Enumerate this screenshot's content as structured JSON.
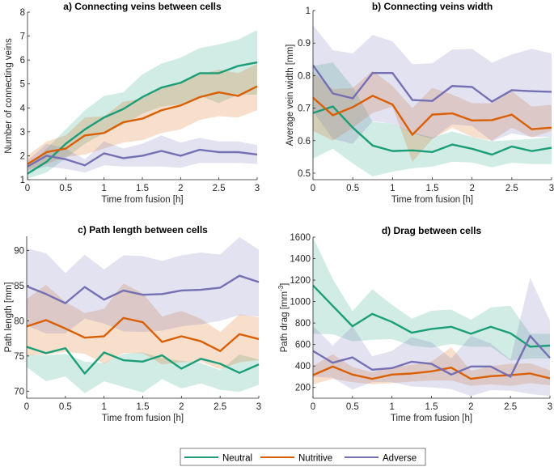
{
  "legend": {
    "position": "bottom-center",
    "entries": [
      {
        "name": "Neutral",
        "color": "#1b9e77"
      },
      {
        "name": "Nutritive",
        "color": "#d95f02"
      },
      {
        "name": "Adverse",
        "color": "#7570b3"
      }
    ]
  },
  "chart_data": [
    {
      "id": "a",
      "type": "line",
      "title": "a) Connecting veins between cells",
      "xlabel": "Time from fusion [h]",
      "ylabel": "Number of connecting veins",
      "xlim": [
        0,
        3
      ],
      "ylim": [
        1,
        8
      ],
      "xticks": [
        0,
        0.5,
        1,
        1.5,
        2,
        2.5,
        3
      ],
      "xtick_labels": [
        "0",
        "0.5",
        "1",
        "1.5",
        "2",
        "2.5",
        "3"
      ],
      "yticks": [
        1,
        2,
        3,
        4,
        5,
        6,
        7,
        8
      ],
      "ytick_labels": [
        "1",
        "2",
        "3",
        "4",
        "5",
        "6",
        "7",
        "8"
      ],
      "grid": false,
      "x": [
        0,
        0.25,
        0.5,
        0.75,
        1,
        1.25,
        1.5,
        1.75,
        2,
        2.25,
        2.5,
        2.75,
        3
      ],
      "series": [
        {
          "name": "Neutral",
          "values": [
            1.25,
            1.75,
            2.5,
            3.1,
            3.6,
            3.95,
            4.45,
            4.85,
            5.05,
            5.45,
            5.45,
            5.75,
            5.9
          ],
          "lower": [
            1.05,
            1.3,
            1.9,
            2.5,
            2.95,
            3.3,
            3.75,
            4.05,
            4.15,
            4.5,
            4.2,
            4.55,
            4.55
          ],
          "upper": [
            1.55,
            2.3,
            3.1,
            3.9,
            4.5,
            4.65,
            5.4,
            5.85,
            6.1,
            6.5,
            6.65,
            6.85,
            7.25
          ]
        },
        {
          "name": "Nutritive",
          "values": [
            1.65,
            2.15,
            2.3,
            2.85,
            2.95,
            3.4,
            3.55,
            3.9,
            4.1,
            4.45,
            4.65,
            4.5,
            4.9
          ],
          "lower": [
            1.4,
            1.65,
            1.95,
            2.05,
            2.3,
            2.55,
            2.65,
            2.95,
            3.1,
            3.5,
            3.65,
            3.6,
            3.9
          ],
          "upper": [
            2.0,
            2.6,
            2.85,
            3.6,
            3.65,
            4.25,
            4.4,
            4.85,
            5.05,
            5.4,
            5.6,
            5.45,
            5.85
          ]
        },
        {
          "name": "Adverse",
          "values": [
            1.55,
            2.0,
            1.85,
            1.6,
            2.1,
            1.9,
            2.0,
            2.2,
            2.0,
            2.25,
            2.15,
            2.15,
            2.05
          ],
          "lower": [
            1.35,
            1.55,
            1.45,
            1.3,
            1.6,
            1.55,
            1.55,
            1.55,
            1.5,
            1.7,
            1.7,
            1.7,
            1.65
          ],
          "upper": [
            1.8,
            2.5,
            2.3,
            1.85,
            2.6,
            2.3,
            2.5,
            2.85,
            2.55,
            2.75,
            2.6,
            2.6,
            2.45
          ]
        }
      ]
    },
    {
      "id": "b",
      "type": "line",
      "title": "b) Connecting veins width",
      "xlabel": "Time from fusion [h]",
      "ylabel": "Average vein width [mm]",
      "xlim": [
        0,
        3
      ],
      "ylim": [
        0.48,
        1.0
      ],
      "xticks": [
        0,
        0.5,
        1,
        1.5,
        2,
        2.5,
        3
      ],
      "xtick_labels": [
        "0",
        "0.5",
        "1",
        "1.5",
        "2",
        "2.5",
        "3"
      ],
      "yticks": [
        0.5,
        0.6,
        0.7,
        0.8,
        0.9,
        1.0
      ],
      "ytick_labels": [
        "0.5",
        "0.6",
        "0.7",
        "0.8",
        "0.9",
        "1"
      ],
      "grid": false,
      "x": [
        0,
        0.25,
        0.5,
        0.75,
        1,
        1.25,
        1.5,
        1.75,
        2,
        2.25,
        2.5,
        2.75,
        3
      ],
      "series": [
        {
          "name": "Neutral",
          "values": [
            0.685,
            0.705,
            0.64,
            0.585,
            0.568,
            0.57,
            0.565,
            0.588,
            0.575,
            0.557,
            0.582,
            0.568,
            0.578
          ],
          "lower": [
            0.545,
            0.575,
            0.53,
            0.49,
            0.505,
            0.515,
            0.52,
            0.535,
            0.533,
            0.518,
            0.532,
            0.528,
            0.528
          ],
          "upper": [
            0.83,
            0.84,
            0.765,
            0.658,
            0.652,
            0.625,
            0.61,
            0.628,
            0.612,
            0.598,
            0.602,
            0.605,
            0.612
          ]
        },
        {
          "name": "Nutritive",
          "values": [
            0.732,
            0.678,
            0.703,
            0.738,
            0.711,
            0.618,
            0.68,
            0.684,
            0.662,
            0.663,
            0.68,
            0.635,
            0.64
          ],
          "lower": [
            0.63,
            0.6,
            0.64,
            0.685,
            0.705,
            0.535,
            0.605,
            0.64,
            0.612,
            0.6,
            0.64,
            0.61,
            0.63
          ],
          "upper": [
            0.81,
            0.758,
            0.762,
            0.815,
            0.768,
            0.7,
            0.762,
            0.742,
            0.715,
            0.715,
            0.752,
            0.705,
            0.71
          ]
        },
        {
          "name": "Adverse",
          "values": [
            0.832,
            0.745,
            0.73,
            0.808,
            0.808,
            0.725,
            0.722,
            0.768,
            0.765,
            0.72,
            0.755,
            0.752,
            0.75
          ],
          "lower": [
            0.69,
            0.605,
            0.59,
            0.66,
            0.652,
            0.622,
            0.605,
            0.65,
            0.645,
            0.598,
            0.622,
            0.612,
            0.612
          ],
          "upper": [
            0.955,
            0.878,
            0.868,
            0.925,
            0.905,
            0.835,
            0.838,
            0.88,
            0.882,
            0.84,
            0.865,
            0.882,
            0.868
          ]
        }
      ]
    },
    {
      "id": "c",
      "type": "line",
      "title": "c) Path length between cells",
      "xlabel": "Time from fusion [h]",
      "ylabel": "Path length [mm]",
      "xlim": [
        0,
        3
      ],
      "ylim": [
        69,
        92
      ],
      "xticks": [
        0,
        0.5,
        1,
        1.5,
        2,
        2.5,
        3
      ],
      "xtick_labels": [
        "0",
        "0.5",
        "1",
        "1.5",
        "2",
        "2.5",
        "3"
      ],
      "yticks": [
        70,
        75,
        80,
        85,
        90
      ],
      "ytick_labels": [
        "70",
        "75",
        "80",
        "85",
        "90"
      ],
      "grid": false,
      "x": [
        0,
        0.25,
        0.5,
        0.75,
        1,
        1.25,
        1.5,
        1.75,
        2,
        2.25,
        2.5,
        2.75,
        3
      ],
      "series": [
        {
          "name": "Neutral",
          "values": [
            76.3,
            75.4,
            76.1,
            72.5,
            75.5,
            74.4,
            74.2,
            75.1,
            73.2,
            74.6,
            73.9,
            72.6,
            73.8
          ],
          "lower": [
            73.4,
            71.4,
            72.1,
            69.7,
            71.4,
            70.6,
            69.8,
            71.7,
            70.4,
            71.1,
            70.2,
            69.9,
            70.9
          ],
          "upper": [
            75.2,
            75.1,
            75.3,
            74.2,
            74.0,
            75.3,
            75.5,
            74.7,
            74.3,
            74.0,
            73.0,
            75.2,
            74.5
          ]
        },
        {
          "name": "Nutritive",
          "values": [
            79.2,
            80.1,
            78.9,
            77.6,
            77.8,
            80.4,
            79.8,
            77.0,
            77.8,
            77.1,
            75.7,
            78.1,
            77.4
          ],
          "lower": [
            75.1,
            75.2,
            75.6,
            75.3,
            73.9,
            75.4,
            75.4,
            73.8,
            74.1,
            74.2,
            73.1,
            74.1,
            74.4
          ],
          "upper": [
            83.1,
            85.1,
            82.7,
            81.1,
            81.7,
            85.3,
            83.9,
            80.6,
            81.4,
            80.3,
            78.4,
            80.9,
            80.5
          ]
        },
        {
          "name": "Adverse",
          "values": [
            84.9,
            83.8,
            82.5,
            84.8,
            83.0,
            84.3,
            83.7,
            83.8,
            84.3,
            84.4,
            84.7,
            86.4,
            85.5
          ],
          "lower": [
            79.3,
            78.2,
            78.2,
            80.3,
            79.6,
            78.5,
            78.4,
            78.6,
            79.2,
            79.5,
            80.0,
            80.8,
            80.6
          ],
          "upper": [
            90.3,
            89.6,
            86.8,
            89.4,
            87.3,
            89.3,
            89.2,
            88.5,
            89.3,
            89.7,
            89.4,
            91.9,
            90.1
          ]
        }
      ]
    },
    {
      "id": "d",
      "type": "line",
      "title": "d) Drag between cells",
      "xlabel": "Time from fusion [h]",
      "ylabel": "Path drag [mm^-3]",
      "xlim": [
        0,
        3
      ],
      "ylim": [
        100,
        1600
      ],
      "xticks": [
        0,
        0.5,
        1,
        1.5,
        2,
        2.5,
        3
      ],
      "xtick_labels": [
        "0",
        "0.5",
        "1",
        "1.5",
        "2",
        "2.5",
        "3"
      ],
      "yticks": [
        200,
        400,
        600,
        800,
        1000,
        1200,
        1400,
        1600
      ],
      "ytick_labels": [
        "200",
        "400",
        "600",
        "800",
        "1000",
        "1200",
        "1400",
        "1600"
      ],
      "grid": false,
      "x": [
        0,
        0.25,
        0.5,
        0.75,
        1,
        1.25,
        1.5,
        1.75,
        2,
        2.25,
        2.5,
        2.75,
        3
      ],
      "series": [
        {
          "name": "Neutral",
          "values": [
            1150,
            960,
            770,
            885,
            810,
            710,
            745,
            765,
            700,
            765,
            705,
            580,
            590
          ],
          "lower": [
            700,
            695,
            630,
            645,
            650,
            590,
            570,
            605,
            580,
            580,
            450,
            470,
            470
          ],
          "upper": [
            1600,
            1210,
            910,
            1115,
            970,
            840,
            915,
            925,
            830,
            945,
            960,
            700,
            700
          ]
        },
        {
          "name": "Nutritive",
          "values": [
            315,
            395,
            320,
            280,
            320,
            330,
            350,
            385,
            280,
            305,
            315,
            330,
            285
          ],
          "lower": [
            230,
            280,
            250,
            230,
            240,
            255,
            265,
            265,
            215,
            230,
            215,
            240,
            220
          ],
          "upper": [
            400,
            510,
            390,
            340,
            390,
            410,
            440,
            575,
            355,
            400,
            420,
            425,
            360
          ]
        },
        {
          "name": "Adverse",
          "values": [
            540,
            430,
            480,
            365,
            380,
            440,
            420,
            320,
            395,
            395,
            300,
            680,
            475
          ],
          "lower": [
            300,
            290,
            180,
            250,
            250,
            210,
            200,
            185,
            120,
            175,
            170,
            140,
            120
          ],
          "upper": [
            775,
            590,
            770,
            490,
            540,
            670,
            620,
            470,
            680,
            610,
            460,
            1220,
            820
          ]
        }
      ]
    }
  ]
}
